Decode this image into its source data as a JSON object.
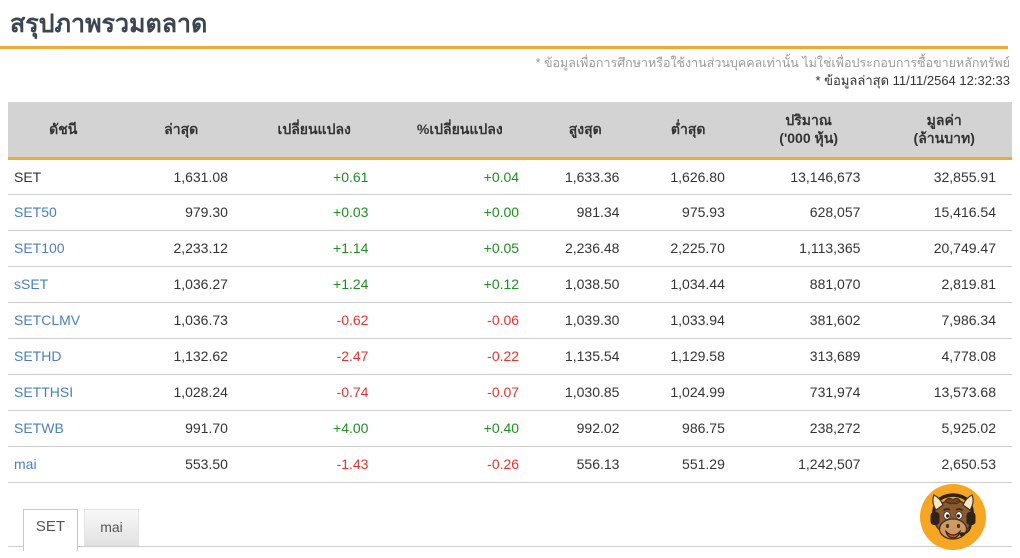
{
  "page": {
    "title": "สรุปภาพรวมตลาด",
    "disclaimer": "* ข้อมูลเพื่อการศึกษาหรือใช้งานส่วนบุคคลเท่านั้น ไม่ใช่เพื่อประกอบการซื้อขายหลักทรัพย์",
    "last_updated": "* ข้อมูลล่าสุด 11/11/2564 12:32:33"
  },
  "market_table": {
    "headers": [
      {
        "line1": "ดัชนี",
        "line2": ""
      },
      {
        "line1": "ล่าสุด",
        "line2": ""
      },
      {
        "line1": "เปลี่ยนแปลง",
        "line2": ""
      },
      {
        "line1": "%เปลี่ยนแปลง",
        "line2": ""
      },
      {
        "line1": "สูงสุด",
        "line2": ""
      },
      {
        "line1": "ต่ำสุด",
        "line2": ""
      },
      {
        "line1": "ปริมาณ",
        "line2": "('000 หุ้น)"
      },
      {
        "line1": "มูลค่า",
        "line2": "(ล้านบาท)"
      }
    ],
    "rows": [
      {
        "index": "SET",
        "link": false,
        "last": "1,631.08",
        "change": "+0.61",
        "pct_change": "+0.04",
        "high": "1,633.36",
        "low": "1,626.80",
        "volume": "13,146,673",
        "value": "32,855.91",
        "dir": "up"
      },
      {
        "index": "SET50",
        "link": true,
        "last": "979.30",
        "change": "+0.03",
        "pct_change": "+0.00",
        "high": "981.34",
        "low": "975.93",
        "volume": "628,057",
        "value": "15,416.54",
        "dir": "up"
      },
      {
        "index": "SET100",
        "link": true,
        "last": "2,233.12",
        "change": "+1.14",
        "pct_change": "+0.05",
        "high": "2,236.48",
        "low": "2,225.70",
        "volume": "1,113,365",
        "value": "20,749.47",
        "dir": "up"
      },
      {
        "index": "sSET",
        "link": true,
        "last": "1,036.27",
        "change": "+1.24",
        "pct_change": "+0.12",
        "high": "1,038.50",
        "low": "1,034.44",
        "volume": "881,070",
        "value": "2,819.81",
        "dir": "up"
      },
      {
        "index": "SETCLMV",
        "link": true,
        "last": "1,036.73",
        "change": "-0.62",
        "pct_change": "-0.06",
        "high": "1,039.30",
        "low": "1,033.94",
        "volume": "381,602",
        "value": "7,986.34",
        "dir": "down"
      },
      {
        "index": "SETHD",
        "link": true,
        "last": "1,132.62",
        "change": "-2.47",
        "pct_change": "-0.22",
        "high": "1,135.54",
        "low": "1,129.58",
        "volume": "313,689",
        "value": "4,778.08",
        "dir": "down"
      },
      {
        "index": "SETTHSI",
        "link": true,
        "last": "1,028.24",
        "change": "-0.74",
        "pct_change": "-0.07",
        "high": "1,030.85",
        "low": "1,024.99",
        "volume": "731,974",
        "value": "13,573.68",
        "dir": "down"
      },
      {
        "index": "SETWB",
        "link": true,
        "last": "991.70",
        "change": "+4.00",
        "pct_change": "+0.40",
        "high": "992.02",
        "low": "986.75",
        "volume": "238,272",
        "value": "5,925.02",
        "dir": "up"
      },
      {
        "index": "mai",
        "link": true,
        "last": "553.50",
        "change": "-1.43",
        "pct_change": "-0.26",
        "high": "556.13",
        "low": "551.29",
        "volume": "1,242,507",
        "value": "2,650.53",
        "dir": "down"
      }
    ]
  },
  "tabs": [
    {
      "label": "SET",
      "active": true
    },
    {
      "label": "mai",
      "active": false
    }
  ],
  "icons": {
    "mascot": "bull-headset-mascot-icon"
  },
  "colors": {
    "accent_orange": "#F5A733",
    "up_green": "#1E8E1E",
    "down_red": "#E8332A",
    "link_blue": "#4C7EBF",
    "header_bg": "#D3D3D3",
    "mascot_circle": "#F6A623"
  }
}
